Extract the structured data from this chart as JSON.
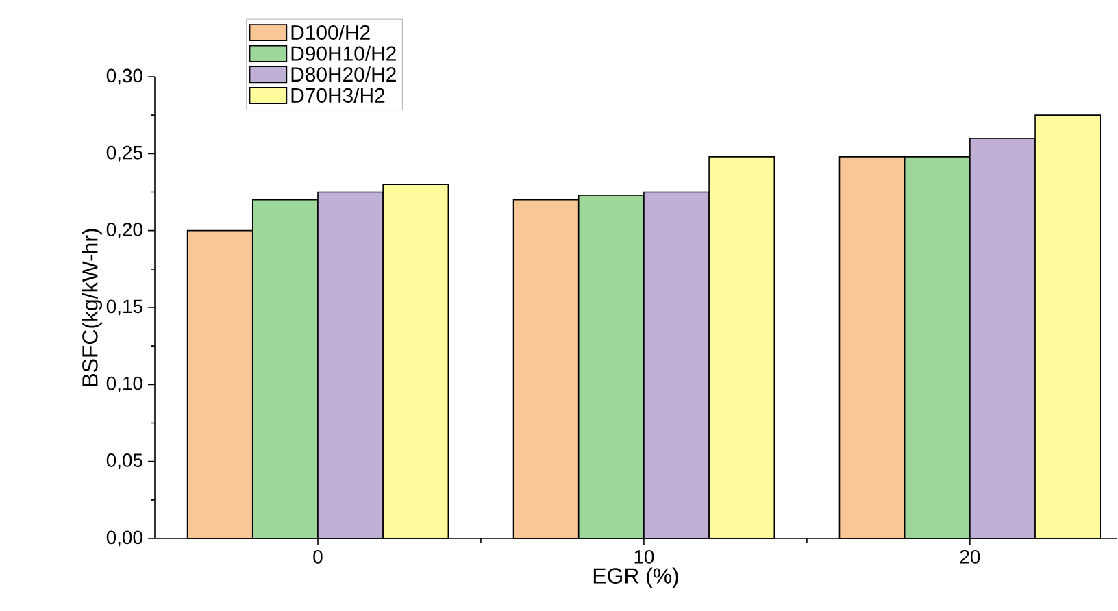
{
  "chart_data": {
    "type": "bar",
    "xlabel": "EGR (%)",
    "ylabel": "BSFC(kg/kW-hr)",
    "categories": [
      "0",
      "10",
      "20"
    ],
    "series": [
      {
        "name": "D100/H2",
        "color": "#f9c795",
        "values": [
          0.2,
          0.22,
          0.248
        ]
      },
      {
        "name": "D90H10/H2",
        "color": "#9dd79a",
        "values": [
          0.22,
          0.223,
          0.248
        ]
      },
      {
        "name": "D80H20/H2",
        "color": "#c1b0d6",
        "values": [
          0.225,
          0.225,
          0.26
        ]
      },
      {
        "name": "D70H3/H2",
        "color": "#fdfb9b",
        "values": [
          0.23,
          0.248,
          0.275
        ]
      }
    ],
    "ylim": [
      0,
      0.3
    ],
    "yticks": [
      {
        "value": 0,
        "label": "0,00"
      },
      {
        "value": 0.05,
        "label": "0,05"
      },
      {
        "value": 0.1,
        "label": "0,10"
      },
      {
        "value": 0.15,
        "label": "0,15"
      },
      {
        "value": 0.2,
        "label": "0,20"
      },
      {
        "value": 0.25,
        "label": "0,25"
      },
      {
        "value": 0.3,
        "label": "0,30"
      }
    ],
    "legend": "top",
    "grid": false
  }
}
